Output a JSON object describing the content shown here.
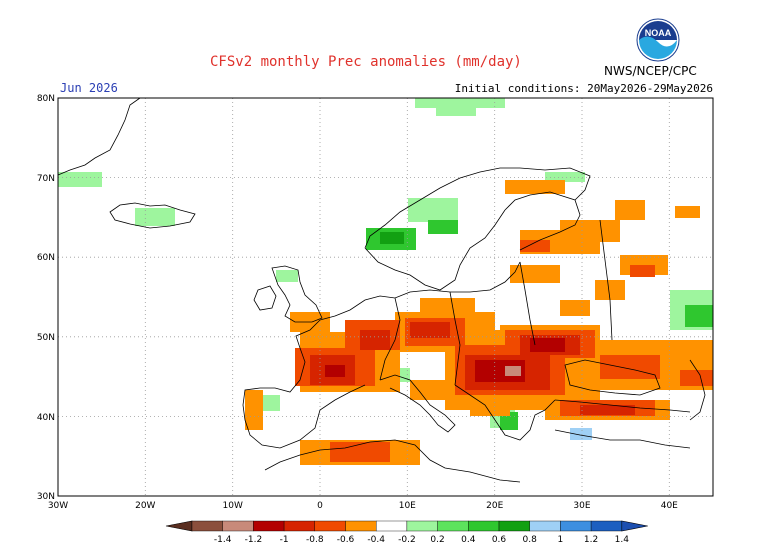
{
  "header": {
    "title": "CFSv2 monthly Prec anomalies (mm/day)",
    "month": "Jun 2026",
    "initial_conditions": "Initial conditions: 20May2026-29May2026",
    "agency": "NWS/NCEP/CPC",
    "logo_text": "NOAA"
  },
  "axes": {
    "lat_labels": [
      "80N",
      "70N",
      "60N",
      "50N",
      "40N",
      "30N"
    ],
    "lon_labels": [
      "30W",
      "20W",
      "10W",
      "0",
      "10E",
      "20E",
      "30E",
      "40E"
    ]
  },
  "colorbar": {
    "labels": [
      "-1.4",
      "-1.2",
      "-1",
      "-0.8",
      "-0.6",
      "-0.4",
      "-0.2",
      "0.2",
      "0.4",
      "0.6",
      "0.8",
      "1",
      "1.2",
      "1.4"
    ],
    "colors": [
      "#8b4f3c",
      "#c88a7a",
      "#b30000",
      "#d62400",
      "#f04a00",
      "#ff9200",
      "#ffffff",
      "#9ef59e",
      "#5de35d",
      "#2fc72f",
      "#12a012",
      "#9fd0f5",
      "#3d8fe0",
      "#1c5fc0"
    ]
  },
  "colors": {
    "title_text": "#e0322c",
    "month_text": "#2b3fb4"
  }
}
